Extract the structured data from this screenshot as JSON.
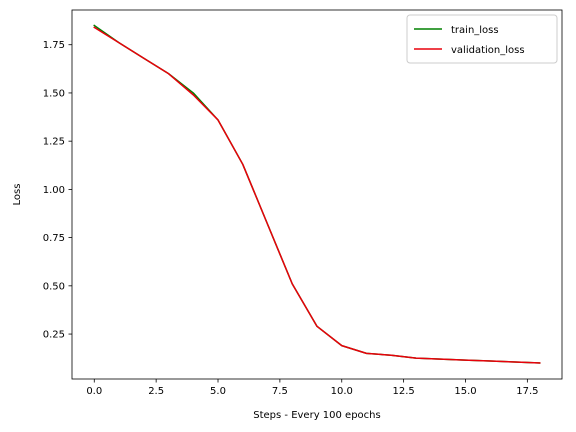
{
  "chart_data": {
    "type": "line",
    "xlabel": "Steps - Every 100 epochs",
    "ylabel": "Loss",
    "xlim": [
      -0.9,
      18.9
    ],
    "ylim": [
      0.017,
      1.93
    ],
    "xticks": [
      0.0,
      2.5,
      5.0,
      7.5,
      10.0,
      12.5,
      15.0,
      17.5
    ],
    "xtick_labels": [
      "0.0",
      "2.5",
      "5.0",
      "7.5",
      "10.0",
      "12.5",
      "15.0",
      "17.5"
    ],
    "yticks": [
      0.25,
      0.5,
      0.75,
      1.0,
      1.25,
      1.5,
      1.75
    ],
    "ytick_labels": [
      "0.25",
      "0.50",
      "0.75",
      "1.00",
      "1.25",
      "1.50",
      "1.75"
    ],
    "grid": false,
    "legend": "top-right",
    "x": [
      0,
      1,
      2,
      3,
      4,
      5,
      6,
      7,
      8,
      9,
      10,
      11,
      12,
      13,
      14,
      15,
      16,
      17,
      18
    ],
    "series": [
      {
        "name": "train_loss",
        "color": "#008000",
        "values": [
          1.85,
          1.76,
          1.68,
          1.6,
          1.5,
          1.36,
          1.13,
          0.82,
          0.51,
          0.29,
          0.19,
          0.15,
          0.14,
          0.125,
          0.12,
          0.115,
          0.11,
          0.105,
          0.1
        ]
      },
      {
        "name": "validation_loss",
        "color": "#e8000b",
        "values": [
          1.84,
          1.76,
          1.68,
          1.6,
          1.49,
          1.36,
          1.13,
          0.82,
          0.51,
          0.29,
          0.19,
          0.15,
          0.14,
          0.125,
          0.12,
          0.115,
          0.11,
          0.105,
          0.1
        ]
      }
    ]
  }
}
